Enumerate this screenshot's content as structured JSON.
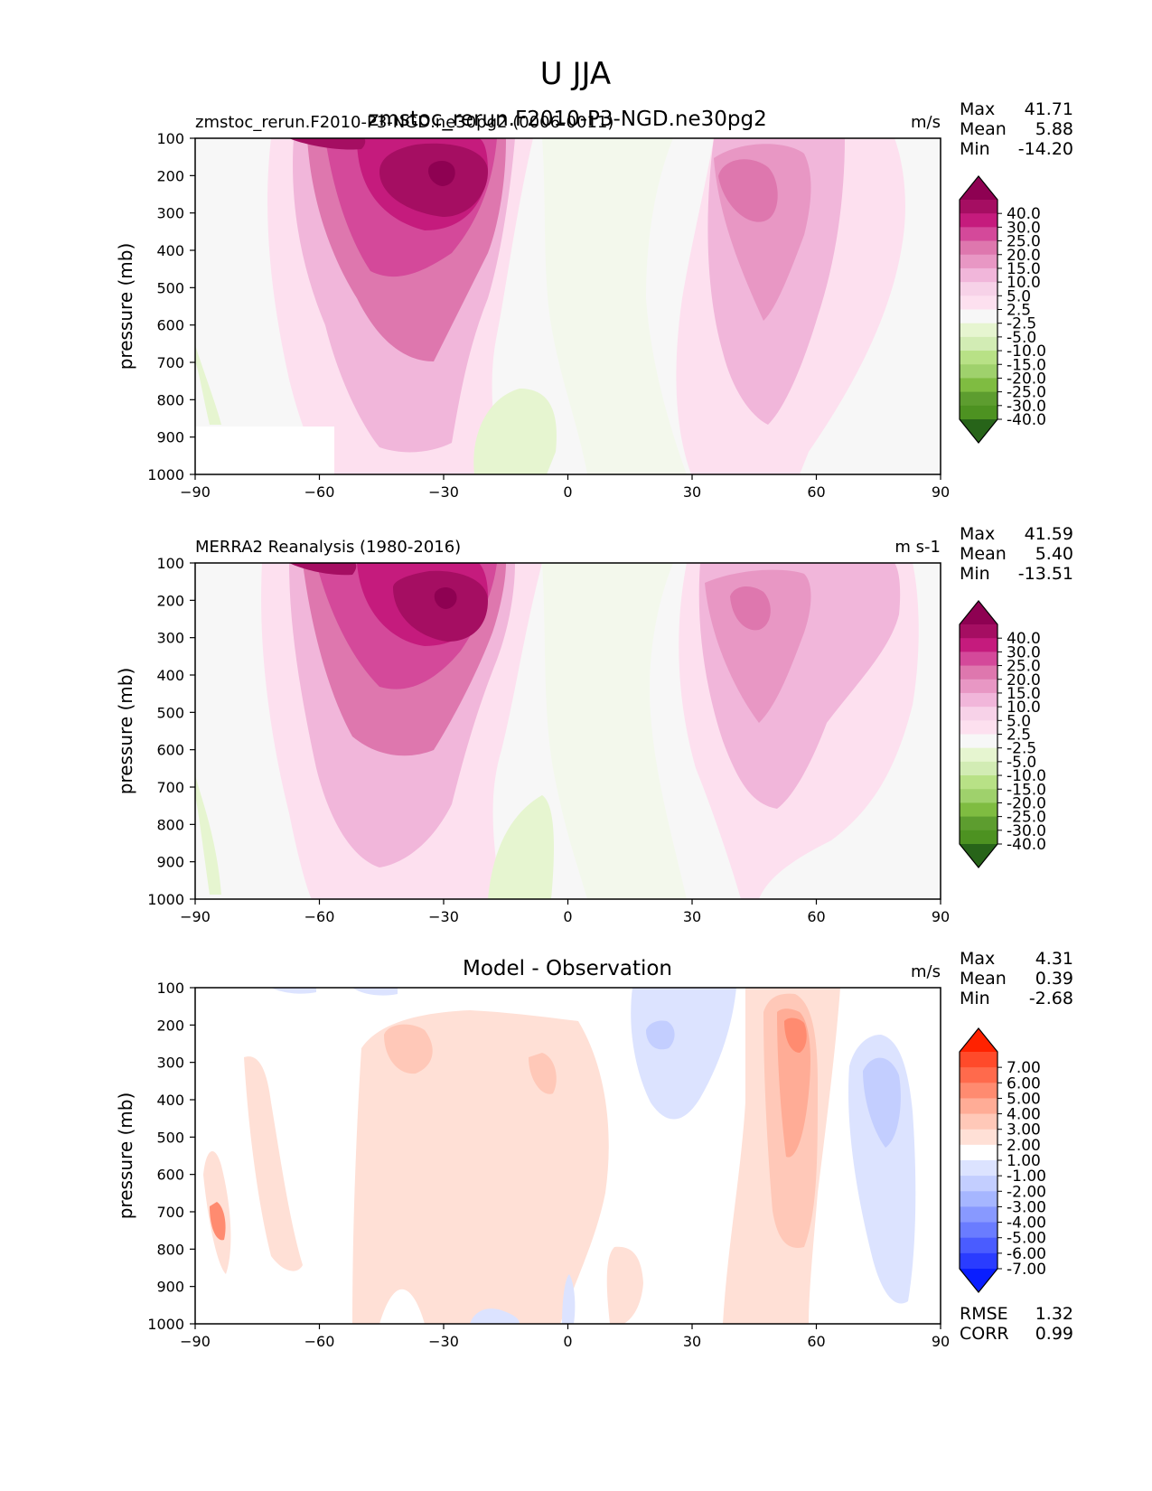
{
  "figure": {
    "title": "U JJA"
  },
  "chart_data": [
    {
      "type": "heatmap",
      "id": "model",
      "title": "zmstoc_rerun.F2010-P3-NGD.ne30pg2",
      "left_label": "zmstoc_rerun.F2010-P3-NGD.ne30pg2 (0006-0011)",
      "units": "m/s",
      "xlabel": "",
      "ylabel": "pressure (mb)",
      "xlim": [
        -90,
        90
      ],
      "ylim": [
        1000,
        100
      ],
      "xticks": [
        "−90",
        "−60",
        "−30",
        "0",
        "30",
        "60",
        "90"
      ],
      "xtick_values": [
        -90,
        -60,
        -30,
        0,
        30,
        60,
        90
      ],
      "yticks": [
        "100",
        "200",
        "300",
        "400",
        "500",
        "600",
        "700",
        "800",
        "900",
        "1000"
      ],
      "ytick_values": [
        100,
        200,
        300,
        400,
        500,
        600,
        700,
        800,
        900,
        1000
      ],
      "stats": [
        {
          "label": "Max",
          "value": "41.71"
        },
        {
          "label": "Mean",
          "value": "5.88"
        },
        {
          "label": "Min",
          "value": "-14.20"
        }
      ],
      "colorbar": {
        "labels": [
          "40.0",
          "30.0",
          "25.0",
          "20.0",
          "15.0",
          "10.0",
          "5.0",
          "2.5",
          "-2.5",
          "-5.0",
          "-10.0",
          "-15.0",
          "-20.0",
          "-25.0",
          "-30.0",
          "-40.0"
        ],
        "colors": [
          "#8e0152",
          "#a50e62",
          "#c51b7d",
          "#d4499a",
          "#de77ae",
          "#e897c4",
          "#f1b6da",
          "#f7d2e8",
          "#fde0ef",
          "#f7f7f7",
          "#e6f5d0",
          "#d2ecb4",
          "#b8e186",
          "#9fd16c",
          "#7fbc41",
          "#5d9d2f",
          "#4d9221",
          "#276419"
        ]
      }
    },
    {
      "type": "heatmap",
      "id": "obs",
      "left_label": "MERRA2 Reanalysis (1980-2016)",
      "units": "m s-1",
      "ylabel": "pressure (mb)",
      "xlim": [
        -90,
        90
      ],
      "ylim": [
        1000,
        100
      ],
      "xticks": [
        "−90",
        "−60",
        "−30",
        "0",
        "30",
        "60",
        "90"
      ],
      "xtick_values": [
        -90,
        -60,
        -30,
        0,
        30,
        60,
        90
      ],
      "yticks": [
        "100",
        "200",
        "300",
        "400",
        "500",
        "600",
        "700",
        "800",
        "900",
        "1000"
      ],
      "ytick_values": [
        100,
        200,
        300,
        400,
        500,
        600,
        700,
        800,
        900,
        1000
      ],
      "stats": [
        {
          "label": "Max",
          "value": "41.59"
        },
        {
          "label": "Mean",
          "value": "5.40"
        },
        {
          "label": "Min",
          "value": "-13.51"
        }
      ],
      "colorbar": {
        "labels": [
          "40.0",
          "30.0",
          "25.0",
          "20.0",
          "15.0",
          "10.0",
          "5.0",
          "2.5",
          "-2.5",
          "-5.0",
          "-10.0",
          "-15.0",
          "-20.0",
          "-25.0",
          "-30.0",
          "-40.0"
        ],
        "colors": [
          "#8e0152",
          "#a50e62",
          "#c51b7d",
          "#d4499a",
          "#de77ae",
          "#e897c4",
          "#f1b6da",
          "#f7d2e8",
          "#fde0ef",
          "#f7f7f7",
          "#e6f5d0",
          "#d2ecb4",
          "#b8e186",
          "#9fd16c",
          "#7fbc41",
          "#5d9d2f",
          "#4d9221",
          "#276419"
        ]
      }
    },
    {
      "type": "heatmap",
      "id": "diff",
      "title": "Model - Observation",
      "units": "m/s",
      "ylabel": "pressure (mb)",
      "xlim": [
        -90,
        90
      ],
      "ylim": [
        1000,
        100
      ],
      "xticks": [
        "−90",
        "−60",
        "−30",
        "0",
        "30",
        "60",
        "90"
      ],
      "xtick_values": [
        -90,
        -60,
        -30,
        0,
        30,
        60,
        90
      ],
      "yticks": [
        "100",
        "200",
        "300",
        "400",
        "500",
        "600",
        "700",
        "800",
        "900",
        "1000"
      ],
      "ytick_values": [
        100,
        200,
        300,
        400,
        500,
        600,
        700,
        800,
        900,
        1000
      ],
      "stats": [
        {
          "label": "Max",
          "value": "4.31"
        },
        {
          "label": "Mean",
          "value": "0.39"
        },
        {
          "label": "Min",
          "value": "-2.68"
        }
      ],
      "bottom_stats": [
        {
          "label": "RMSE",
          "value": "1.32"
        },
        {
          "label": "CORR",
          "value": "0.99"
        }
      ],
      "colorbar": {
        "labels": [
          "7.00",
          "6.00",
          "5.00",
          "4.00",
          "3.00",
          "2.00",
          "1.00",
          "-1.00",
          "-2.00",
          "-3.00",
          "-4.00",
          "-5.00",
          "-6.00",
          "-7.00"
        ],
        "colors": [
          "#ff2200",
          "#ff4a2a",
          "#ff6a4c",
          "#ff8b70",
          "#ffac96",
          "#ffc8b8",
          "#ffe0d6",
          "#ffffff",
          "#dce3ff",
          "#c3ceff",
          "#a6b6ff",
          "#8899ff",
          "#6a7cff",
          "#4a5cff",
          "#2a3cff",
          "#0a1eff"
        ]
      }
    }
  ]
}
